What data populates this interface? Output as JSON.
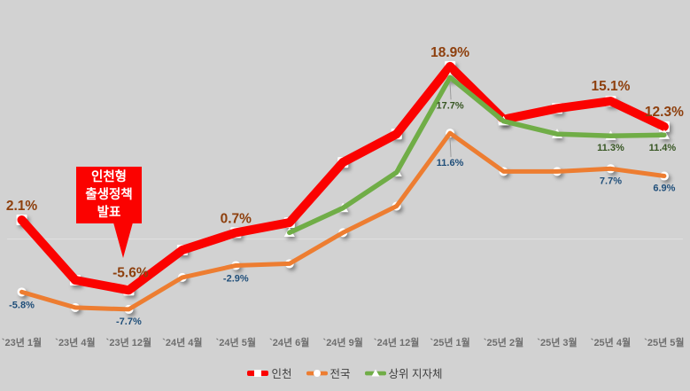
{
  "chart_data": {
    "type": "line",
    "title": "",
    "xlabel": "",
    "ylabel": "",
    "grid": false,
    "y_axis_visible": false,
    "legend_position": "bottom",
    "categories": [
      "`23년 1월",
      "`23년 4월",
      "`23년 12월",
      "`24년 4월",
      "`24년 5월",
      "`24년 6월",
      "`24년 9월",
      "`24년 12월",
      "`25년 1월",
      "`25년 2월",
      "`25년 3월",
      "`25년 4월",
      "`25년 5월"
    ],
    "series": [
      {
        "name": "인천",
        "color": "#fb0200",
        "marker": "square",
        "line_width": 10,
        "label_color": "#8E400E",
        "label_size": 15.5,
        "values": [
          2.1,
          -4.5,
          -5.6,
          -1.2,
          0.7,
          1.8,
          8.4,
          11.5,
          18.9,
          13.1,
          14.3,
          15.1,
          12.3
        ],
        "point_labels": [
          {
            "index": 0,
            "text": "2.1%",
            "dy": -11
          },
          {
            "index": 2,
            "text": "-5.6%",
            "dy": -15,
            "dx": 2
          },
          {
            "index": 4,
            "text": "0.7%",
            "dy": -11
          },
          {
            "index": 8,
            "text": "18.9%",
            "dy": -11
          },
          {
            "index": 11,
            "text": "15.1%",
            "dy": -12
          },
          {
            "index": 12,
            "text": "12.3%",
            "dy": -12
          }
        ]
      },
      {
        "name": "전국",
        "color": "#ED7D31",
        "marker": "circle",
        "line_width": 5,
        "label_color": "#1F4E79",
        "label_size": 11,
        "values": [
          -5.8,
          -7.5,
          -7.7,
          -4.2,
          -2.9,
          -2.7,
          0.7,
          3.6,
          11.6,
          7.4,
          7.4,
          7.7,
          6.9
        ],
        "point_labels": [
          {
            "index": 0,
            "text": "-5.8%",
            "dy": 18
          },
          {
            "index": 2,
            "text": "-7.7%",
            "dy": 17
          },
          {
            "index": 4,
            "text": "-2.9%",
            "dy": 18
          },
          {
            "index": 8,
            "text": "11.6%",
            "dy": 37,
            "leader": true
          },
          {
            "index": 11,
            "text": "7.7%",
            "dy": 17
          },
          {
            "index": 12,
            "text": "6.9%",
            "dy": 17
          }
        ]
      },
      {
        "name": "상위 지자체",
        "color": "#70AD47",
        "marker": "triangle",
        "line_width": 5.5,
        "label_color": "#375623",
        "label_size": 11,
        "values": [
          null,
          null,
          null,
          null,
          null,
          0.7,
          3.4,
          7.3,
          17.7,
          12.9,
          11.5,
          11.3,
          11.4
        ],
        "point_labels": [
          {
            "index": 8,
            "text": "17.7%",
            "dy": 35,
            "leader": true
          },
          {
            "index": 11,
            "text": "11.3%",
            "dy": 17
          },
          {
            "index": 12,
            "text": "11.4%",
            "dy": 18,
            "dx": -2
          }
        ]
      }
    ],
    "annotation": {
      "lines": [
        "인천형",
        "출생정책",
        "발표"
      ],
      "target_category_index": 2,
      "bg": "#fb0200",
      "text_color": "#ffffff"
    }
  },
  "colors": {
    "background": "#d2d2d2",
    "axis_line": "#dedede",
    "axis_label": "#6e6e6e",
    "legend_text": "#404040",
    "leader_line": "#9b9b9b"
  },
  "legend": {
    "items": [
      {
        "label": "인천",
        "color": "#fb0200",
        "marker": "square"
      },
      {
        "label": "전국",
        "color": "#ED7D31",
        "marker": "circle"
      },
      {
        "label": "상위 지자체",
        "color": "#70AD47",
        "marker": "triangle"
      }
    ]
  }
}
